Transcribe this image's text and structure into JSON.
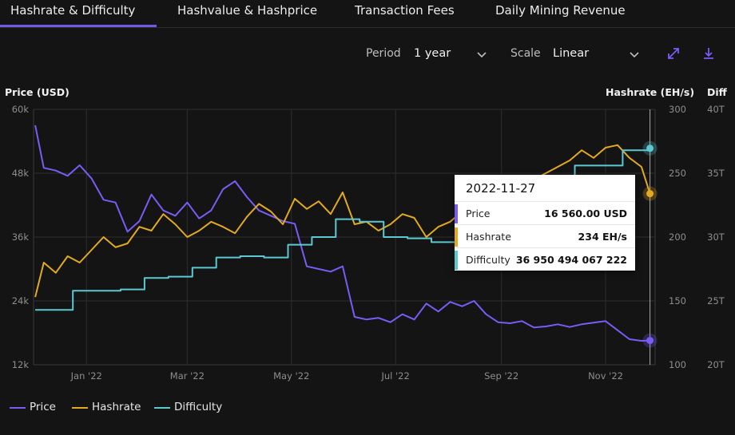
{
  "tabs": [
    {
      "label": "Hashrate & Difficulty",
      "active": true
    },
    {
      "label": "Hashvalue & Hashprice",
      "active": false
    },
    {
      "label": "Transaction Fees",
      "active": false
    },
    {
      "label": "Daily Mining Revenue",
      "active": false
    }
  ],
  "controls": {
    "period_label": "Period",
    "period_value": "1 year",
    "scale_label": "Scale",
    "scale_value": "Linear",
    "expand_icon": "expand-icon",
    "download_icon": "download-icon"
  },
  "tooltip": {
    "date": "2022-11-27",
    "rows": [
      {
        "name": "Price",
        "value": "16 560.00 USD"
      },
      {
        "name": "Hashrate",
        "value": "234 EH/s"
      },
      {
        "name": "Difficulty",
        "value": "36 950 494 067 222"
      }
    ]
  },
  "legend": [
    "Price",
    "Hashrate",
    "Difficulty"
  ],
  "colors": {
    "background": "#141414",
    "accent": "#6e5ae6",
    "price": "#7a5cf5",
    "hashrate": "#e3aa1e",
    "difficulty": "#5cc8d2",
    "grid": "#2e2e2e"
  },
  "chart_data": {
    "type": "line",
    "x_range": [
      "2021-12-01",
      "2022-11-30"
    ],
    "x_ticks": [
      "Jan '22",
      "Mar '22",
      "May '22",
      "Jul '22",
      "Sep '22",
      "Nov '22"
    ],
    "x_tick_dates": [
      "2022-01-01",
      "2022-03-01",
      "2022-05-01",
      "2022-07-01",
      "2022-09-01",
      "2022-11-01"
    ],
    "grid": true,
    "legend_position": "bottom-left",
    "axes": {
      "left": {
        "title": "Price (USD)",
        "ylim": [
          12000,
          60000
        ],
        "ticks": [
          "12k",
          "24k",
          "36k",
          "48k",
          "60k"
        ]
      },
      "right_hashrate": {
        "title": "Hashrate (EH/s)",
        "ylim": [
          100,
          300
        ],
        "ticks": [
          "100",
          "150",
          "200",
          "250",
          "300"
        ]
      },
      "right_difficulty": {
        "title": "Diff",
        "ylim": [
          20,
          40
        ],
        "ticks": [
          "20T",
          "25T",
          "30T",
          "35T",
          "40T"
        ]
      }
    },
    "series": [
      {
        "name": "Price",
        "axis": "left",
        "x": [
          "2021-12-02",
          "2021-12-07",
          "2021-12-14",
          "2021-12-21",
          "2021-12-28",
          "2022-01-04",
          "2022-01-11",
          "2022-01-18",
          "2022-01-25",
          "2022-02-01",
          "2022-02-08",
          "2022-02-15",
          "2022-02-22",
          "2022-03-01",
          "2022-03-08",
          "2022-03-15",
          "2022-03-22",
          "2022-03-29",
          "2022-04-05",
          "2022-04-12",
          "2022-04-19",
          "2022-04-26",
          "2022-05-03",
          "2022-05-10",
          "2022-05-17",
          "2022-05-24",
          "2022-05-31",
          "2022-06-07",
          "2022-06-14",
          "2022-06-21",
          "2022-06-28",
          "2022-07-05",
          "2022-07-12",
          "2022-07-19",
          "2022-07-26",
          "2022-08-02",
          "2022-08-09",
          "2022-08-16",
          "2022-08-23",
          "2022-08-30",
          "2022-09-06",
          "2022-09-13",
          "2022-09-20",
          "2022-09-27",
          "2022-10-04",
          "2022-10-11",
          "2022-10-18",
          "2022-10-25",
          "2022-11-01",
          "2022-11-08",
          "2022-11-15",
          "2022-11-22",
          "2022-11-27"
        ],
        "values": [
          57000,
          49000,
          48500,
          47500,
          49500,
          47000,
          43000,
          42500,
          37000,
          39000,
          44000,
          41000,
          40000,
          42500,
          39500,
          41000,
          45000,
          46500,
          43500,
          41000,
          40000,
          39000,
          38500,
          30500,
          30000,
          29500,
          30500,
          21000,
          20500,
          20800,
          20000,
          21500,
          20500,
          23500,
          22000,
          23800,
          23000,
          24000,
          21500,
          20000,
          19800,
          20200,
          19000,
          19200,
          19600,
          19100,
          19600,
          19900,
          20200,
          18500,
          16800,
          16500,
          16560
        ]
      },
      {
        "name": "Hashrate",
        "axis": "right_hashrate",
        "x": [
          "2021-12-02",
          "2021-12-07",
          "2021-12-14",
          "2021-12-21",
          "2021-12-28",
          "2022-01-04",
          "2022-01-11",
          "2022-01-18",
          "2022-01-25",
          "2022-02-01",
          "2022-02-08",
          "2022-02-15",
          "2022-02-22",
          "2022-03-01",
          "2022-03-08",
          "2022-03-15",
          "2022-03-22",
          "2022-03-29",
          "2022-04-05",
          "2022-04-12",
          "2022-04-19",
          "2022-04-26",
          "2022-05-03",
          "2022-05-10",
          "2022-05-17",
          "2022-05-24",
          "2022-05-31",
          "2022-06-07",
          "2022-06-14",
          "2022-06-21",
          "2022-06-28",
          "2022-07-05",
          "2022-07-12",
          "2022-07-19",
          "2022-07-26",
          "2022-08-02",
          "2022-08-09",
          "2022-08-16",
          "2022-08-23",
          "2022-08-30",
          "2022-09-06",
          "2022-09-13",
          "2022-09-20",
          "2022-09-27",
          "2022-10-04",
          "2022-10-11",
          "2022-10-18",
          "2022-10-25",
          "2022-11-01",
          "2022-11-08",
          "2022-11-15",
          "2022-11-22",
          "2022-11-27"
        ],
        "values": [
          153,
          180,
          172,
          185,
          180,
          190,
          200,
          192,
          195,
          208,
          205,
          218,
          210,
          200,
          205,
          212,
          208,
          203,
          216,
          226,
          220,
          210,
          230,
          222,
          228,
          218,
          235,
          210,
          212,
          205,
          210,
          218,
          215,
          200,
          208,
          212,
          220,
          225,
          230,
          228,
          232,
          240,
          245,
          250,
          255,
          260,
          268,
          262,
          270,
          272,
          262,
          255,
          234
        ]
      },
      {
        "name": "Difficulty",
        "axis": "right_difficulty",
        "x": [
          "2021-12-02",
          "2021-12-10",
          "2021-12-24",
          "2022-01-07",
          "2022-01-21",
          "2022-02-04",
          "2022-02-18",
          "2022-03-04",
          "2022-03-18",
          "2022-04-01",
          "2022-04-15",
          "2022-04-29",
          "2022-05-13",
          "2022-05-27",
          "2022-06-10",
          "2022-06-24",
          "2022-07-08",
          "2022-07-22",
          "2022-08-05",
          "2022-08-19",
          "2022-09-02",
          "2022-09-16",
          "2022-09-30",
          "2022-10-14",
          "2022-10-28",
          "2022-11-11",
          "2022-11-27"
        ],
        "values": [
          24.3,
          24.3,
          25.8,
          25.8,
          25.9,
          26.8,
          26.9,
          27.6,
          28.4,
          28.5,
          28.4,
          29.4,
          30.0,
          31.4,
          31.2,
          30.0,
          29.9,
          29.6,
          28.4,
          29.2,
          30.9,
          31.9,
          32.9,
          35.6,
          35.6,
          36.8,
          36.95
        ]
      }
    ]
  }
}
